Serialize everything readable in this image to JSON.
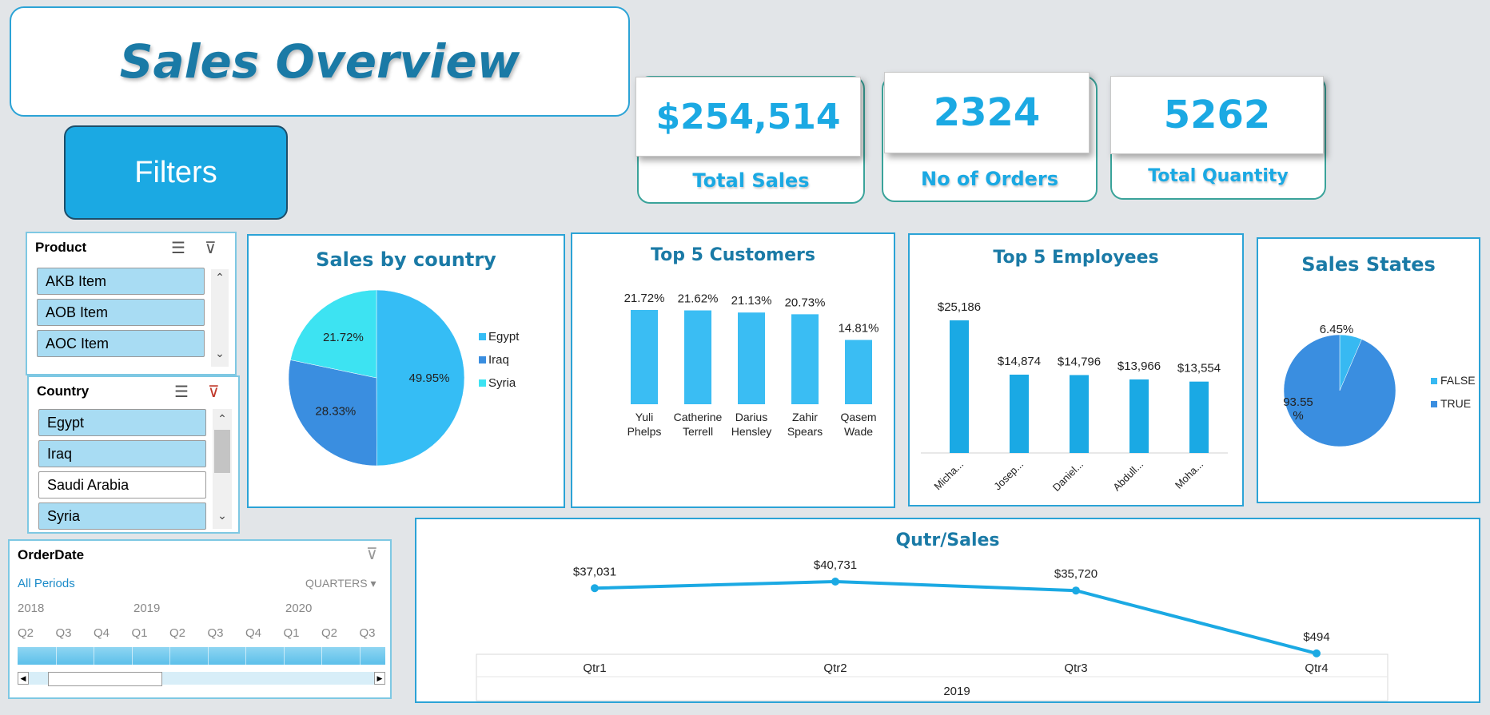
{
  "header": {
    "title": "Sales Overview",
    "filters_label": "Filters"
  },
  "kpis": [
    {
      "value": "$254,514",
      "label": "Total Sales"
    },
    {
      "value": "2324",
      "label": "No of Orders"
    },
    {
      "value": "5262",
      "label": "Total Quantity"
    }
  ],
  "product_slicer": {
    "title": "Product",
    "items": [
      {
        "label": "AKB Item",
        "selected": true
      },
      {
        "label": "AOB Item",
        "selected": true
      },
      {
        "label": "AOC Item",
        "selected": true
      }
    ]
  },
  "country_slicer": {
    "title": "Country",
    "items": [
      {
        "label": "Egypt",
        "selected": true
      },
      {
        "label": "Iraq",
        "selected": true
      },
      {
        "label": "Saudi Arabia",
        "selected": false
      },
      {
        "label": "Syria",
        "selected": true
      }
    ]
  },
  "timeline": {
    "title": "OrderDate",
    "period_label": "All Periods",
    "level_label": "QUARTERS",
    "years": [
      "2018",
      "2019",
      "2020"
    ],
    "quarters": [
      "Q2",
      "Q3",
      "Q4",
      "Q1",
      "Q2",
      "Q3",
      "Q4",
      "Q1",
      "Q2",
      "Q3"
    ]
  },
  "icons": {
    "multiselect": "multi-select-icon",
    "clear_filter": "clear-filter-icon",
    "scroll_up": "scroll-up-icon",
    "scroll_down": "scroll-down-icon"
  },
  "colors": {
    "accent": "#1ba9e3",
    "title": "#1a7aa6",
    "pie_egypt": "#35bdf5",
    "pie_iraq": "#3a8ee0",
    "pie_syria": "#3de3f2"
  },
  "chart_data": [
    {
      "type": "pie",
      "title": "Sales by country",
      "categories": [
        "Egypt",
        "Iraq",
        "Syria"
      ],
      "values": [
        49.95,
        28.33,
        21.72
      ],
      "labels": [
        "49.95%",
        "28.33%",
        "21.72%"
      ],
      "legend": "right"
    },
    {
      "type": "bar",
      "title": "Top 5 Customers",
      "categories": [
        "Yuli Phelps",
        "Catherine Terrell",
        "Darius Hensley",
        "Zahir Spears",
        "Qasem Wade"
      ],
      "category_lines": [
        [
          "Yuli",
          "Phelps"
        ],
        [
          "Catherine",
          "Terrell"
        ],
        [
          "Darius",
          "Hensley"
        ],
        [
          "Zahir",
          "Spears"
        ],
        [
          "Qasem",
          "Wade"
        ]
      ],
      "values": [
        21.72,
        21.62,
        21.13,
        20.73,
        14.81
      ],
      "labels": [
        "21.72%",
        "21.62%",
        "21.13%",
        "20.73%",
        "14.81%"
      ]
    },
    {
      "type": "bar",
      "title": "Top 5 Employees",
      "categories": [
        "Micha...",
        "Josep...",
        "Daniel...",
        "Abdull...",
        "Moha..."
      ],
      "values": [
        25186,
        14874,
        14796,
        13966,
        13554
      ],
      "labels": [
        "$25,186",
        "$14,874",
        "$14,796",
        "$13,966",
        "$13,554"
      ]
    },
    {
      "type": "pie",
      "title": "Sales States",
      "categories": [
        "FALSE",
        "TRUE"
      ],
      "values": [
        6.45,
        93.55
      ],
      "labels": [
        "6.45%",
        "93.55\n%"
      ],
      "legend": "right"
    },
    {
      "type": "line",
      "title": "Qutr/Sales",
      "categories": [
        "Qtr1",
        "Qtr2",
        "Qtr3",
        "Qtr4"
      ],
      "group_label": "2019",
      "values": [
        37031,
        40731,
        35720,
        494
      ],
      "labels": [
        "$37,031",
        "$40,731",
        "$35,720",
        "$494"
      ]
    }
  ]
}
